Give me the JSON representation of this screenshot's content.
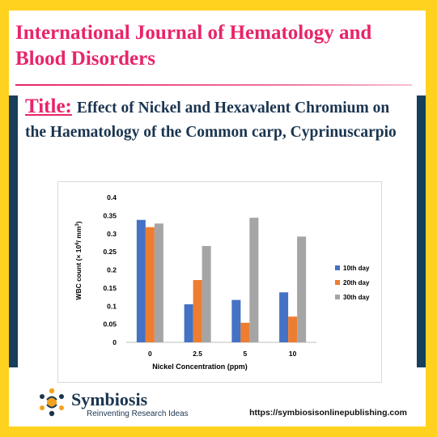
{
  "journal": {
    "line1": "International Journal of Hematology and",
    "line2": "Blood Disorders"
  },
  "article": {
    "title_label": "Title:",
    "title_text": "Effect of Nickel and Hexavalent Chromium on the Haematology of the Common carp, Cyprinuscarpio"
  },
  "chart_data": {
    "type": "bar",
    "categories": [
      "0",
      "2.5",
      "5",
      "10"
    ],
    "series": [
      {
        "name": "10th day",
        "color": "#4472c4",
        "values": [
          0.338,
          0.105,
          0.117,
          0.138
        ]
      },
      {
        "name": "20th day",
        "color": "#ed7d31",
        "values": [
          0.318,
          0.172,
          0.054,
          0.071
        ]
      },
      {
        "name": "30th day",
        "color": "#a5a5a5",
        "values": [
          0.328,
          0.266,
          0.344,
          0.292
        ]
      }
    ],
    "xlabel": "Nickel Concentration (ppm)",
    "ylabel_prefix": "WBC count (× 10",
    "ylabel_exp1": "6",
    "ylabel_mid": "/ mm",
    "ylabel_exp2": "3",
    "ylabel_suffix": ")",
    "ylim": [
      0,
      0.4
    ],
    "yticks": [
      "0",
      "0.05",
      "0.1",
      "0.15",
      "0.2",
      "0.25",
      "0.3",
      "0.35",
      "0.4"
    ],
    "grid": false,
    "legend_position": "right"
  },
  "footer": {
    "brand": "Symbiosis",
    "tagline": "Reinventing Research Ideas",
    "url": "https://symbiosisonlinepublishing.com"
  },
  "colors": {
    "background": "#ffd21f",
    "accent": "#e8246a",
    "navy": "#183f5c"
  }
}
